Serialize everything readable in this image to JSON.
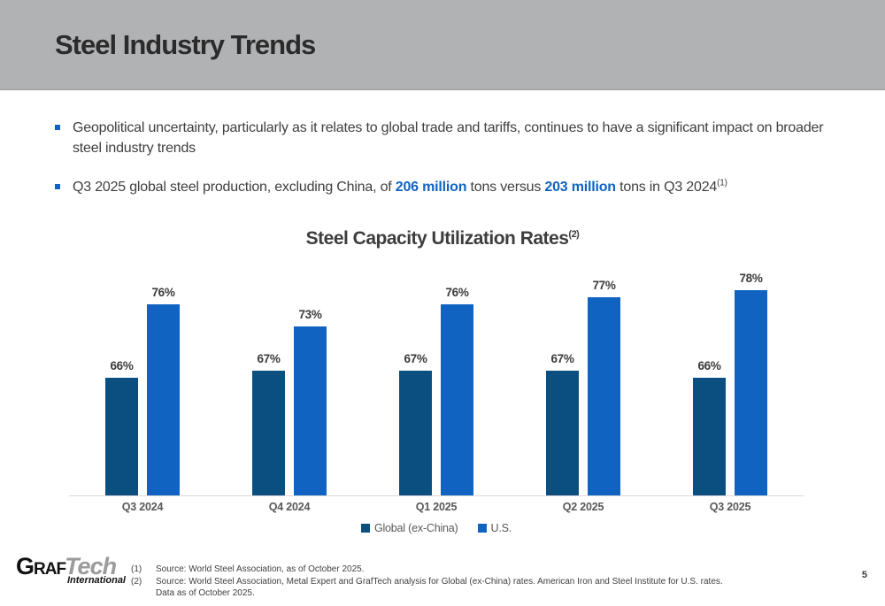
{
  "header": {
    "title": "Steel Industry Trends"
  },
  "bullets": [
    {
      "segments": [
        {
          "text": "Geopolitical uncertainty, particularly as it relates to global trade and tariffs, continues to have a significant impact on broader steel industry trends",
          "style": "normal"
        }
      ]
    },
    {
      "segments": [
        {
          "text": "Q3 2025 global steel production, excluding China, of ",
          "style": "normal"
        },
        {
          "text": "206 million",
          "style": "highlight"
        },
        {
          "text": " tons versus ",
          "style": "normal"
        },
        {
          "text": "203 million",
          "style": "highlight"
        },
        {
          "text": " tons in Q3 2024",
          "style": "normal"
        },
        {
          "text": "(1)",
          "style": "superscript"
        }
      ]
    }
  ],
  "chart_data": {
    "type": "bar",
    "title": "Steel Capacity Utilization Rates",
    "title_superscript": "(2)",
    "categories": [
      "Q3 2024",
      "Q4 2024",
      "Q1 2025",
      "Q2 2025",
      "Q3 2025"
    ],
    "series": [
      {
        "name": "Global (ex-China)",
        "color": "#0B4F81",
        "values": [
          66,
          67,
          67,
          67,
          66
        ]
      },
      {
        "name": "U.S.",
        "color": "#1063C1",
        "values": [
          76,
          73,
          76,
          77,
          78
        ]
      }
    ],
    "value_suffix": "%",
    "ylim": [
      50,
      80
    ],
    "grid": false,
    "legend_position": "bottom",
    "xlabel": "",
    "ylabel": ""
  },
  "footer": {
    "logo": {
      "graf": "Graf",
      "tech": "Tech",
      "international": "International"
    },
    "footnotes": [
      {
        "num": "(1)",
        "text": "Source: World Steel Association, as of October 2025."
      },
      {
        "num": "(2)",
        "text": "Source: World Steel Association, Metal Expert and GrafTech analysis for Global (ex-China) rates.  American Iron and Steel Institute for U.S. rates.  Data as of October 2025."
      }
    ],
    "page_number": "5"
  },
  "colors": {
    "header_bg": "#B1B2B4",
    "header_border": "#97989A",
    "accent_blue": "#1063C1",
    "dark_blue": "#0B4F81",
    "axis_line": "#D9D9D9"
  }
}
